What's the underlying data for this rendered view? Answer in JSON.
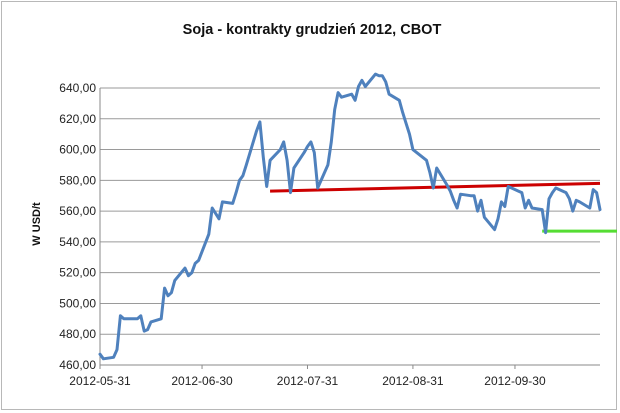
{
  "chart_data": {
    "type": "line",
    "title": "Soja - kontrakty grudzień 2012, CBOT",
    "xlabel": "",
    "ylabel": "W USD/t",
    "ylim": [
      460,
      640
    ],
    "yticks": [
      460,
      480,
      500,
      520,
      540,
      560,
      580,
      600,
      620,
      640
    ],
    "ytick_labels": [
      "460,00",
      "480,00",
      "500,00",
      "520,00",
      "540,00",
      "560,00",
      "580,00",
      "600,00",
      "620,00",
      "640,00"
    ],
    "xlim": [
      "2012-05-31",
      "2012-10-25"
    ],
    "xtick_labels": [
      "2012-05-31",
      "2012-06-30",
      "2012-07-31",
      "2012-08-31",
      "2012-09-30"
    ],
    "grid": "horizontal",
    "legend": "none",
    "series": [
      {
        "color": "#4f81bd",
        "x": [
          "2012-05-31",
          "2012-06-01",
          "2012-06-04",
          "2012-06-05",
          "2012-06-06",
          "2012-06-07",
          "2012-06-08",
          "2012-06-11",
          "2012-06-12",
          "2012-06-13",
          "2012-06-14",
          "2012-06-15",
          "2012-06-18",
          "2012-06-19",
          "2012-06-20",
          "2012-06-21",
          "2012-06-22",
          "2012-06-25",
          "2012-06-26",
          "2012-06-27",
          "2012-06-28",
          "2012-06-29",
          "2012-07-02",
          "2012-07-03",
          "2012-07-05",
          "2012-07-06",
          "2012-07-09",
          "2012-07-10",
          "2012-07-11",
          "2012-07-12",
          "2012-07-13",
          "2012-07-16",
          "2012-07-17",
          "2012-07-18",
          "2012-07-19",
          "2012-07-20",
          "2012-07-23",
          "2012-07-24",
          "2012-07-25",
          "2012-07-26",
          "2012-07-27",
          "2012-07-30",
          "2012-07-31",
          "2012-08-01",
          "2012-08-02",
          "2012-08-03",
          "2012-08-06",
          "2012-08-07",
          "2012-08-08",
          "2012-08-09",
          "2012-08-10",
          "2012-08-13",
          "2012-08-14",
          "2012-08-15",
          "2012-08-16",
          "2012-08-17",
          "2012-08-20",
          "2012-08-21",
          "2012-08-22",
          "2012-08-23",
          "2012-08-24",
          "2012-08-27",
          "2012-08-28",
          "2012-08-29",
          "2012-08-30",
          "2012-08-31",
          "2012-09-04",
          "2012-09-05",
          "2012-09-06",
          "2012-09-07",
          "2012-09-10",
          "2012-09-11",
          "2012-09-12",
          "2012-09-13",
          "2012-09-14",
          "2012-09-17",
          "2012-09-18",
          "2012-09-19",
          "2012-09-20",
          "2012-09-21",
          "2012-09-24",
          "2012-09-25",
          "2012-09-26",
          "2012-09-27",
          "2012-09-28",
          "2012-10-01",
          "2012-10-02",
          "2012-10-03",
          "2012-10-04",
          "2012-10-05",
          "2012-10-08",
          "2012-10-09",
          "2012-10-10",
          "2012-10-11",
          "2012-10-12",
          "2012-10-15",
          "2012-10-16",
          "2012-10-17",
          "2012-10-18",
          "2012-10-19",
          "2012-10-22",
          "2012-10-23",
          "2012-10-24",
          "2012-10-25"
        ],
        "y": [
          467,
          464,
          465,
          470,
          492,
          490,
          490,
          490,
          492,
          482,
          483,
          488,
          490,
          510,
          505,
          507,
          515,
          523,
          518,
          520,
          526,
          528,
          545,
          562,
          555,
          566,
          565,
          572,
          580,
          583,
          590,
          612,
          618,
          595,
          576,
          593,
          600,
          605,
          593,
          572,
          588,
          598,
          602,
          605,
          598,
          575,
          590,
          605,
          626,
          637,
          634,
          636,
          632,
          641,
          645,
          641,
          649,
          648,
          648,
          644,
          636,
          632,
          624,
          617,
          610,
          600,
          593,
          585,
          575,
          588,
          577,
          573,
          567,
          562,
          571,
          570,
          570,
          560,
          567,
          556,
          548,
          555,
          566,
          563,
          576,
          573,
          572,
          562,
          567,
          562,
          561,
          546,
          568,
          572,
          575,
          572,
          568,
          560,
          567,
          566,
          562,
          574,
          572,
          561
        ]
      }
    ],
    "annotations": [
      {
        "type": "line",
        "color": "#cc0000",
        "from": [
          "2012-07-20",
          573
        ],
        "to": [
          "2012-10-25",
          578
        ]
      },
      {
        "type": "line",
        "color": "#55dd33",
        "from": [
          "2012-10-08",
          547
        ],
        "to": [
          "2012-10-30",
          547
        ]
      }
    ]
  }
}
